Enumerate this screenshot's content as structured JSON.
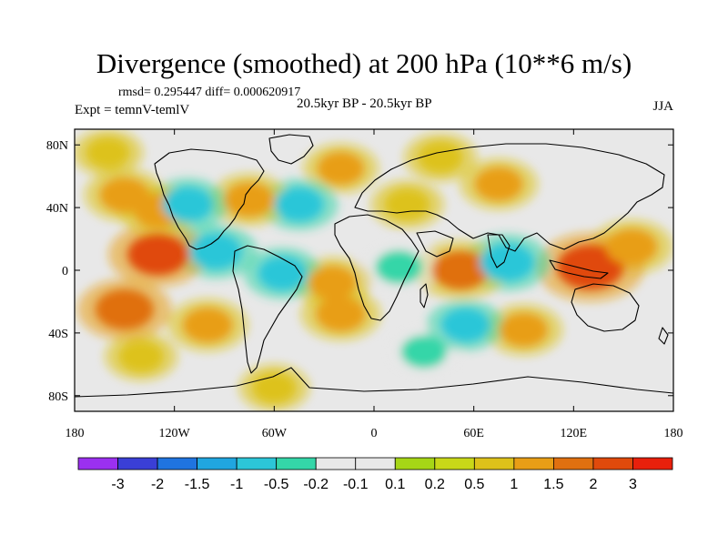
{
  "header": {
    "title": "Divergence (smoothed) at 200 hPa (10**6 m/s)",
    "stats": "rmsd= 0.295447 diff= 0.000620917",
    "expt": "Expt = temnV-temlV",
    "period": "20.5kyr BP - 20.5kyr BP",
    "season": "JJA"
  },
  "chart_data": {
    "type": "heatmap",
    "title": "Divergence (smoothed) at 200 hPa (10**6 m/s)",
    "xlabel": "",
    "ylabel": "",
    "xlim": [
      -180,
      180
    ],
    "ylim": [
      -90,
      90
    ],
    "x_ticks": [
      {
        "value": -180,
        "label": "180"
      },
      {
        "value": -120,
        "label": "120W"
      },
      {
        "value": -60,
        "label": "60W"
      },
      {
        "value": 0,
        "label": "0"
      },
      {
        "value": 60,
        "label": "60E"
      },
      {
        "value": 120,
        "label": "120E"
      },
      {
        "value": 180,
        "label": "180"
      }
    ],
    "y_ticks": [
      {
        "value": 80,
        "label": "80N"
      },
      {
        "value": 40,
        "label": "40N"
      },
      {
        "value": 0,
        "label": "0"
      },
      {
        "value": -40,
        "label": "40S"
      },
      {
        "value": -80,
        "label": "80S"
      }
    ],
    "colorbar": {
      "labels": [
        "-3",
        "-2",
        "-1.5",
        "-1",
        "-0.5",
        "-0.2",
        "-0.1",
        "0.1",
        "0.2",
        "0.5",
        "1",
        "1.5",
        "2",
        "3"
      ],
      "colors": [
        "#9b30f0",
        "#3a3fd6",
        "#1f74e0",
        "#20a6e0",
        "#2cc6d8",
        "#34d6a8",
        "#e8e8e8",
        "#a6d616",
        "#c9d818",
        "#ddc21a",
        "#e89e16",
        "#e07010",
        "#e04a0c",
        "#e8200c"
      ],
      "neutral_color": "#e8e8e8"
    },
    "background_value": "neutral (-0.1 to 0.1)",
    "features": [
      {
        "name": "N Pacific mid-latitude",
        "lon": -150,
        "lat": 48,
        "value": 0.7
      },
      {
        "name": "E Pacific arc",
        "lon": -130,
        "lat": 38,
        "value": 0.6
      },
      {
        "name": "Western N America",
        "lon": -112,
        "lat": 42,
        "value": -0.7
      },
      {
        "name": "Eastern N America",
        "lon": -75,
        "lat": 45,
        "value": 0.7
      },
      {
        "name": "N Atlantic",
        "lon": -45,
        "lat": 42,
        "value": -0.6
      },
      {
        "name": "Subpolar N Atlantic",
        "lon": -20,
        "lat": 65,
        "value": 0.5
      },
      {
        "name": "Arctic N Pacific",
        "lon": -160,
        "lat": 75,
        "value": 0.3
      },
      {
        "name": "Eurasia high latitude",
        "lon": 40,
        "lat": 72,
        "value": 0.4
      },
      {
        "name": "Siberia",
        "lon": 75,
        "lat": 55,
        "value": 0.6
      },
      {
        "name": "Mediterranean",
        "lon": 20,
        "lat": 42,
        "value": 0.4
      },
      {
        "name": "E Pacific tropics",
        "lon": -130,
        "lat": 10,
        "value": 1.5
      },
      {
        "name": "Central America",
        "lon": -95,
        "lat": 12,
        "value": -0.8
      },
      {
        "name": "Tropical S America",
        "lon": -55,
        "lat": -2,
        "value": -0.6
      },
      {
        "name": "Tropical Atlantic",
        "lon": -25,
        "lat": -8,
        "value": 0.6
      },
      {
        "name": "Equatorial Africa",
        "lon": 15,
        "lat": 2,
        "value": -0.5
      },
      {
        "name": "W Indian Ocean",
        "lon": 52,
        "lat": 0,
        "value": 1.2
      },
      {
        "name": "Indian Ocean",
        "lon": 80,
        "lat": 5,
        "value": -1.0
      },
      {
        "name": "Maritime Continent",
        "lon": 130,
        "lat": 2,
        "value": 1.9
      },
      {
        "name": "W Pacific",
        "lon": 155,
        "lat": 15,
        "value": 0.8
      },
      {
        "name": "S Pacific",
        "lon": -150,
        "lat": -25,
        "value": 1.3
      },
      {
        "name": "SE Pacific",
        "lon": -100,
        "lat": -35,
        "value": 0.7
      },
      {
        "name": "S Atlantic",
        "lon": -20,
        "lat": -28,
        "value": 0.7
      },
      {
        "name": "SW Indian Ocean",
        "lon": 55,
        "lat": -35,
        "value": -0.6
      },
      {
        "name": "S Indian Ocean",
        "lon": 90,
        "lat": -38,
        "value": 0.6
      },
      {
        "name": "Southern Ocean Pacific",
        "lon": -140,
        "lat": -55,
        "value": 0.4
      },
      {
        "name": "Southern Ocean",
        "lon": 30,
        "lat": -52,
        "value": -0.4
      },
      {
        "name": "Antarctic coast",
        "lon": -60,
        "lat": -75,
        "value": 0.3
      }
    ]
  }
}
